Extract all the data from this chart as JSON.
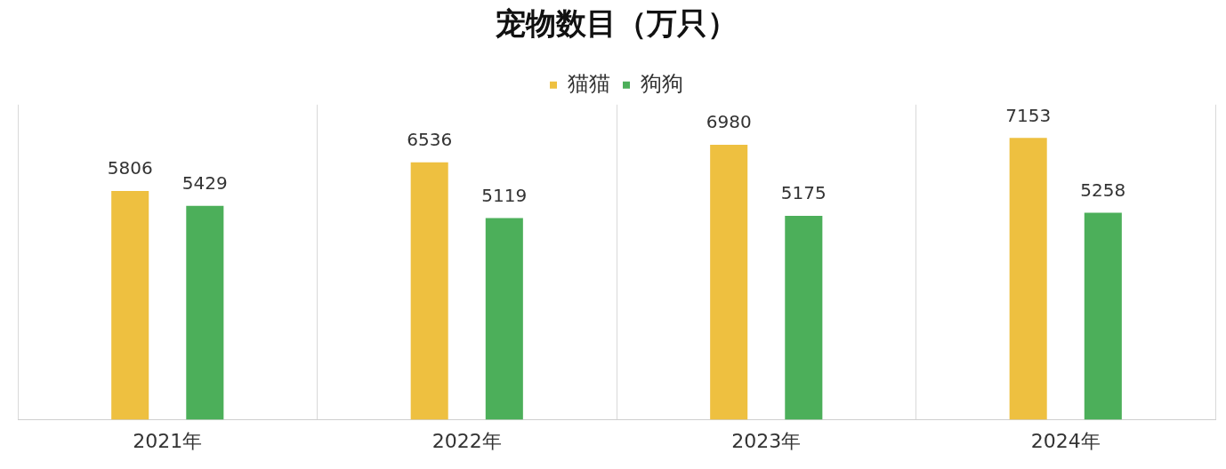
{
  "chart_data": {
    "type": "bar",
    "title": "宠物数目（万只）",
    "categories": [
      "2021年",
      "2022年",
      "2023年",
      "2024年"
    ],
    "series": [
      {
        "name": "猫猫",
        "color": "#eec040",
        "values": [
          5806,
          6536,
          6980,
          7153
        ]
      },
      {
        "name": "狗狗",
        "color": "#4caf5a",
        "values": [
          5429,
          5119,
          5175,
          5258
        ]
      }
    ],
    "data_labels": true,
    "legend": "top",
    "grid": "x"
  }
}
